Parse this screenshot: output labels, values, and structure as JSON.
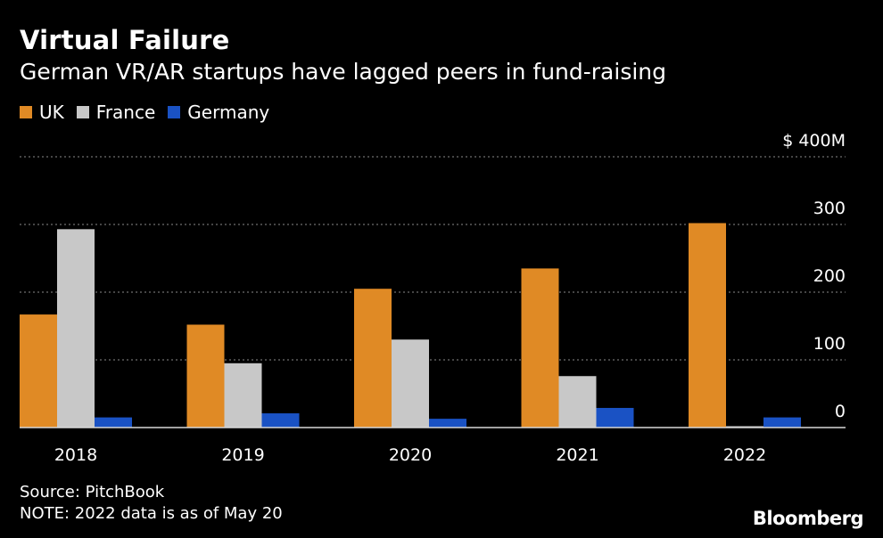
{
  "header": {
    "title": "Virtual Failure",
    "subtitle": "German VR/AR startups have lagged peers in fund-raising"
  },
  "legend": [
    {
      "label": "UK",
      "color": "#e08a25"
    },
    {
      "label": "France",
      "color": "#c8c8c8"
    },
    {
      "label": "Germany",
      "color": "#1a52c4"
    }
  ],
  "chart_data": {
    "type": "bar",
    "categories": [
      "2018",
      "2019",
      "2020",
      "2021",
      "2022"
    ],
    "series": [
      {
        "name": "UK",
        "color": "#e08a25",
        "values": [
          167,
          152,
          205,
          235,
          302
        ]
      },
      {
        "name": "France",
        "color": "#c8c8c8",
        "values": [
          293,
          95,
          130,
          76,
          2
        ]
      },
      {
        "name": "Germany",
        "color": "#1a52c4",
        "values": [
          15,
          21,
          13,
          29,
          15
        ]
      }
    ],
    "y_ticks": [
      {
        "value": 0,
        "label": "0"
      },
      {
        "value": 100,
        "label": "100"
      },
      {
        "value": 200,
        "label": "200"
      },
      {
        "value": 300,
        "label": "300"
      },
      {
        "value": 400,
        "label": "$ 400M"
      }
    ],
    "ylim": [
      0,
      400
    ],
    "y_axis_side": "right",
    "grid": true,
    "legend_position": "top-left",
    "title": "Virtual Failure",
    "subtitle": "German VR/AR startups have lagged peers in fund-raising"
  },
  "footer": {
    "source": "Source: PitchBook",
    "note": "NOTE: 2022 data is as of May 20"
  },
  "brand": "Bloomberg"
}
